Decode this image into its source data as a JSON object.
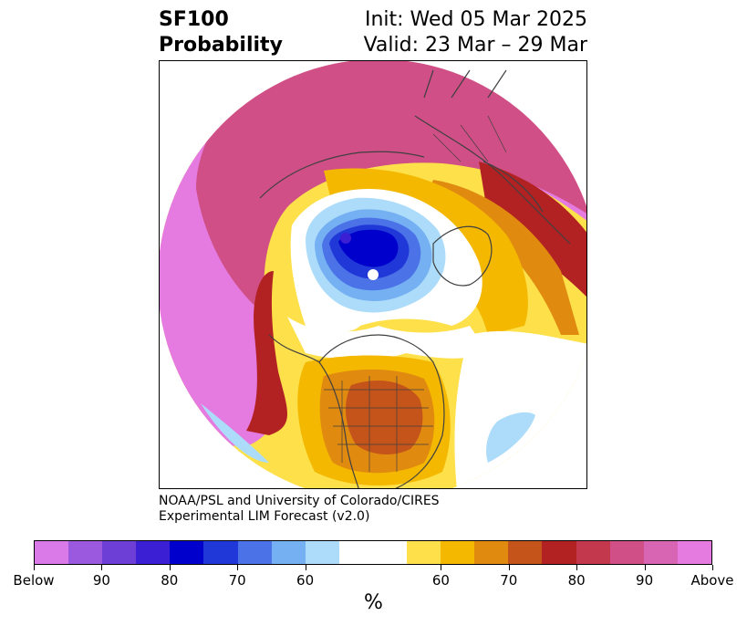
{
  "header": {
    "title_line1": "SF100",
    "title_line2": "Probability",
    "init_label": "Init: Wed 05 Mar 2025",
    "valid_label": "Valid: 23 Mar – 29 Mar"
  },
  "credit": {
    "line1": "NOAA/PSL and University of Colorado/CIRES",
    "line2": "Experimental LIM Forecast (v2.0)"
  },
  "colorbar": {
    "colors": [
      "#d97ae8",
      "#9b59e0",
      "#6d3fd6",
      "#3b1fd4",
      "#0000cc",
      "#2038d8",
      "#4b72e6",
      "#74b0f2",
      "#acdcfa",
      "#ffffff",
      "#ffffff",
      "#fde04a",
      "#f4b800",
      "#e08a10",
      "#c4541a",
      "#b22222",
      "#c4384e",
      "#cf4f86",
      "#d765b4",
      "#e57ae0"
    ],
    "tick_labels": [
      "Below",
      "90",
      "80",
      "70",
      "60",
      "60",
      "70",
      "80",
      "90",
      "Above"
    ],
    "unit": "%"
  },
  "map": {
    "projection": "north polar stereographic",
    "field_colors": {
      "above_high": "#e57ae0",
      "above_mid": "#cf4f86",
      "above_low": "#b22222",
      "warm_1": "#c4541a",
      "warm_2": "#e08a10",
      "warm_3": "#f4b800",
      "warm_4": "#fde04a",
      "neutral": "#ffffff",
      "cold_1": "#acdcfa",
      "cold_2": "#74b0f2",
      "cold_3": "#4b72e6",
      "cold_4": "#2038d8",
      "cold_5": "#0000cc",
      "coast": "#404040"
    }
  }
}
